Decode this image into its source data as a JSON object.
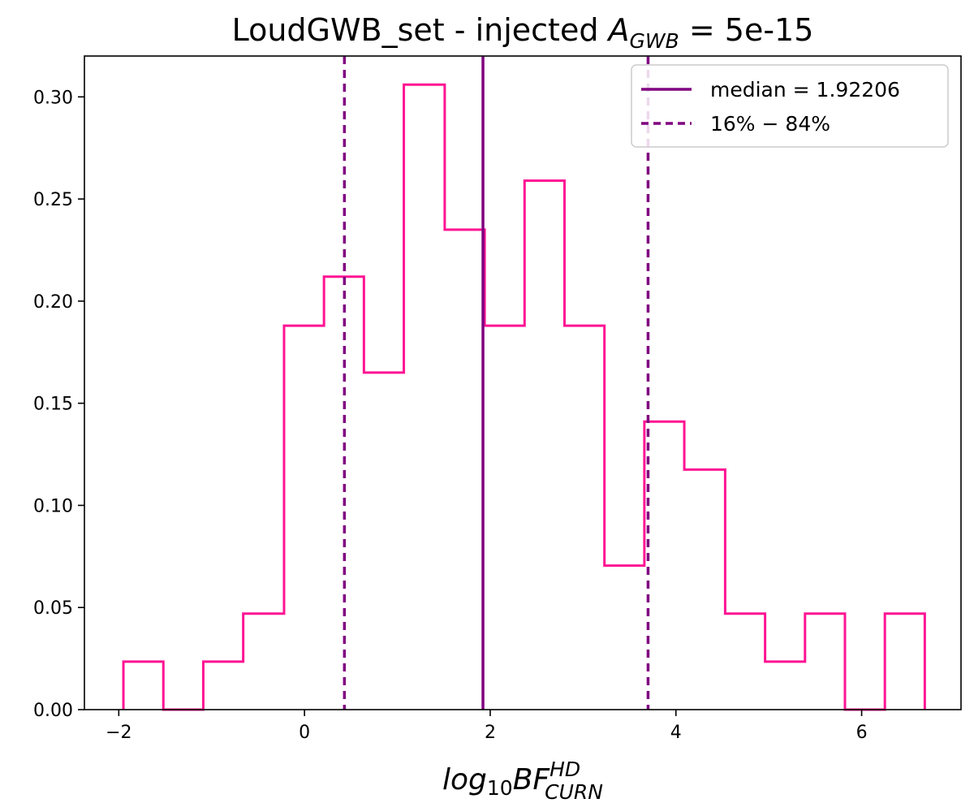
{
  "chart_data": {
    "type": "histogram",
    "title": {
      "prefix": "LoudGWB_set - injected ",
      "symbol": "A",
      "subscript": "GWB",
      "suffix": " = 5e-15"
    },
    "xlabel": {
      "base": "log",
      "base_sub": "10",
      "main": "BF",
      "sup": "HD",
      "sub": "CURN"
    },
    "ylabel": "",
    "xlim": [
      -2.37,
      7.07
    ],
    "ylim": [
      0.0,
      0.32
    ],
    "xticks": [
      -2,
      0,
      2,
      4,
      6
    ],
    "xtick_labels": [
      "−2",
      "0",
      "2",
      "4",
      "6"
    ],
    "yticks": [
      0.0,
      0.05,
      0.1,
      0.15,
      0.2,
      0.25,
      0.3
    ],
    "ytick_labels": [
      "0.00",
      "0.05",
      "0.10",
      "0.15",
      "0.20",
      "0.25",
      "0.30"
    ],
    "bins": [
      {
        "left": -1.95,
        "right": -1.52,
        "value": 0.0235
      },
      {
        "left": -1.52,
        "right": -1.09,
        "value": 0.0
      },
      {
        "left": -1.09,
        "right": -0.66,
        "value": 0.0235
      },
      {
        "left": -0.66,
        "right": -0.22,
        "value": 0.047
      },
      {
        "left": -0.22,
        "right": 0.21,
        "value": 0.188
      },
      {
        "left": 0.21,
        "right": 0.64,
        "value": 0.212
      },
      {
        "left": 0.64,
        "right": 1.07,
        "value": 0.165
      },
      {
        "left": 1.07,
        "right": 1.51,
        "value": 0.306
      },
      {
        "left": 1.51,
        "right": 1.94,
        "value": 0.235
      },
      {
        "left": 1.94,
        "right": 2.37,
        "value": 0.188
      },
      {
        "left": 2.37,
        "right": 2.8,
        "value": 0.259
      },
      {
        "left": 2.8,
        "right": 3.23,
        "value": 0.188
      },
      {
        "left": 3.23,
        "right": 3.66,
        "value": 0.0705
      },
      {
        "left": 3.66,
        "right": 4.09,
        "value": 0.141
      },
      {
        "left": 4.09,
        "right": 4.53,
        "value": 0.1175
      },
      {
        "left": 4.53,
        "right": 4.96,
        "value": 0.047
      },
      {
        "left": 4.96,
        "right": 5.39,
        "value": 0.0235
      },
      {
        "left": 5.39,
        "right": 5.82,
        "value": 0.047
      },
      {
        "left": 5.82,
        "right": 6.25,
        "value": 0.0
      },
      {
        "left": 6.25,
        "right": 6.68,
        "value": 0.047
      }
    ],
    "median": 1.92206,
    "p16": 0.43,
    "p84": 3.7,
    "legend": {
      "placement": "top-right",
      "entries": [
        {
          "label": "median = 1.92206",
          "style": "solid"
        },
        {
          "label_main": "16%",
          "label_sep": " − ",
          "label_end": "84%",
          "style": "dashed"
        }
      ]
    },
    "grid": false,
    "colors": {
      "histogram": "#ff1493",
      "lines": "#800080",
      "axes": "#000000",
      "legend_border": "#cccccc"
    }
  }
}
